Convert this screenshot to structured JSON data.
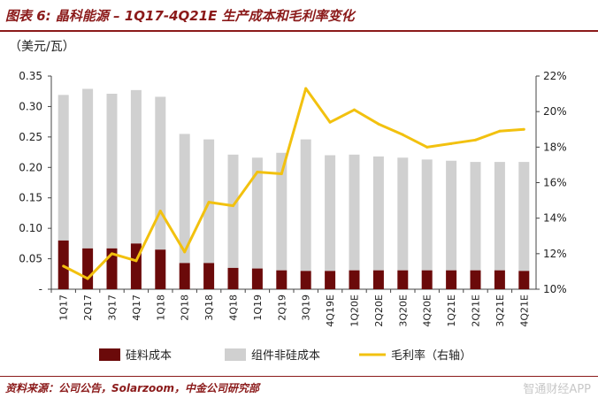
{
  "title": "图表 6: 晶科能源 – 1Q17-4Q21E 生产成本和毛利率变化",
  "unit_label": "（美元/瓦）",
  "source": "资料来源：公司公告，Solarzoom，中金公司研究部",
  "watermark": "智通财经APP",
  "colors": {
    "silicon": "#6b0a0a",
    "non_silicon": "#d0d0d0",
    "margin": "#f2c10f",
    "accent": "#8b1a1a"
  },
  "chart_data": {
    "type": "bar",
    "categories": [
      "1Q17",
      "2Q17",
      "3Q17",
      "4Q17",
      "1Q18",
      "2Q18",
      "3Q18",
      "4Q18",
      "1Q19",
      "2Q19",
      "3Q19",
      "4Q19E",
      "1Q20E",
      "2Q20E",
      "3Q20E",
      "4Q20E",
      "1Q21E",
      "2Q21E",
      "3Q21E",
      "4Q21E"
    ],
    "series": [
      {
        "name": "硅料成本",
        "kind": "bar-stack-bottom",
        "values": [
          0.08,
          0.067,
          0.067,
          0.075,
          0.065,
          0.043,
          0.043,
          0.035,
          0.034,
          0.031,
          0.03,
          0.03,
          0.031,
          0.031,
          0.031,
          0.031,
          0.031,
          0.031,
          0.031,
          0.03
        ]
      },
      {
        "name": "组件非硅成本",
        "kind": "bar-stack-top",
        "values": [
          0.239,
          0.262,
          0.254,
          0.252,
          0.251,
          0.212,
          0.203,
          0.186,
          0.182,
          0.193,
          0.216,
          0.19,
          0.19,
          0.187,
          0.185,
          0.182,
          0.18,
          0.178,
          0.178,
          0.179
        ]
      },
      {
        "name": "毛利率（右轴）",
        "kind": "line-right",
        "values": [
          11.3,
          10.6,
          12.0,
          11.6,
          14.4,
          12.1,
          14.9,
          14.7,
          16.6,
          16.5,
          21.3,
          19.4,
          20.1,
          19.3,
          18.7,
          18.0,
          18.2,
          18.4,
          18.9,
          19.0
        ]
      }
    ],
    "left_axis": {
      "min": 0,
      "max": 0.35,
      "step": 0.05,
      "tick_labels": [
        "-",
        "0.05",
        "0.10",
        "0.15",
        "0.20",
        "0.25",
        "0.30",
        "0.35"
      ]
    },
    "right_axis": {
      "min": 10,
      "max": 22,
      "step": 2,
      "tick_labels": [
        "10%",
        "12%",
        "14%",
        "16%",
        "18%",
        "20%",
        "22%"
      ]
    },
    "legend": [
      "硅料成本",
      "组件非硅成本",
      "毛利率（右轴）"
    ]
  }
}
